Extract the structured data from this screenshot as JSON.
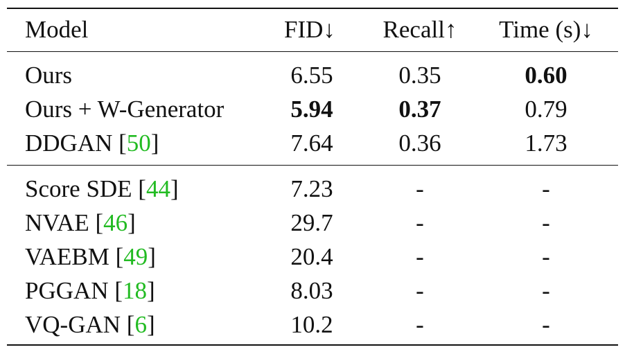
{
  "header": {
    "model": "Model",
    "fid": "FID↓",
    "recall": "Recall↑",
    "time": "Time (s)↓"
  },
  "group1": [
    {
      "name": "Ours",
      "cite": "",
      "fid": "6.55",
      "recall": "0.35",
      "time": "0.60",
      "bold": [
        "time"
      ]
    },
    {
      "name": "Ours + W-Generator",
      "cite": "",
      "fid": "5.94",
      "recall": "0.37",
      "time": "0.79",
      "bold": [
        "fid",
        "recall"
      ]
    },
    {
      "name": "DDGAN [",
      "cite": "50",
      "close": "]",
      "fid": "7.64",
      "recall": "0.36",
      "time": "1.73",
      "bold": []
    }
  ],
  "group2": [
    {
      "name": "Score SDE [",
      "cite": "44",
      "close": "]",
      "fid": "7.23",
      "recall": "-",
      "time": "-"
    },
    {
      "name": "NVAE [",
      "cite": "46",
      "close": "]",
      "fid": "29.7",
      "recall": "-",
      "time": "-"
    },
    {
      "name": "VAEBM [",
      "cite": "49",
      "close": "]",
      "fid": "20.4",
      "recall": "-",
      "time": "-"
    },
    {
      "name": "PGGAN [",
      "cite": "18",
      "close": "]",
      "fid": "8.03",
      "recall": "-",
      "time": "-"
    },
    {
      "name": "VQ-GAN [",
      "cite": "6",
      "close": "]",
      "fid": "10.2",
      "recall": "-",
      "time": "-"
    }
  ]
}
